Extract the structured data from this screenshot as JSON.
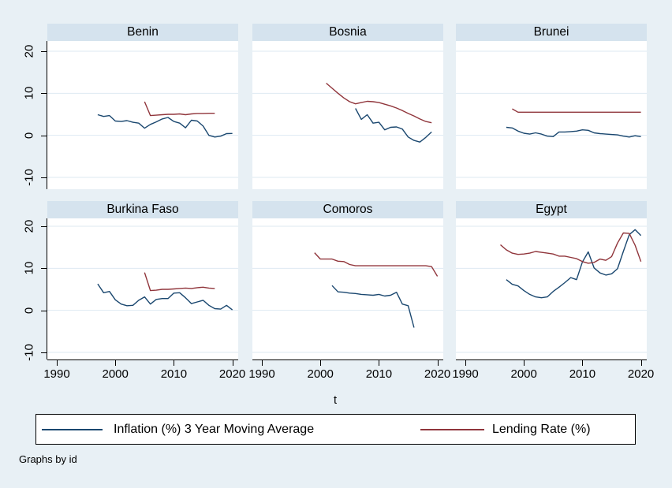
{
  "figure": {
    "background": "#e8f0f5",
    "panel_title_bg": "#d5e3ee",
    "plot_bg": "#ffffff",
    "gridline_color": "#dee9f2",
    "axis_color": "#000000"
  },
  "legend": {
    "items": [
      {
        "label": "Inflation (%) 3 Year Moving Average",
        "color": "#1a476f"
      },
      {
        "label": "Lending Rate (%)",
        "color": "#90353b"
      }
    ]
  },
  "axis": {
    "xlabel": "t",
    "x_ticks": [
      1990,
      2000,
      2010,
      2020
    ],
    "y_ticks": [
      20,
      10,
      0,
      -10
    ]
  },
  "footer": {
    "note": "Graphs by id"
  },
  "chart_data": {
    "type": "line",
    "facet_by": "id",
    "x_range": [
      1988.4,
      2021
    ],
    "y_gridlines": [
      20,
      10,
      0,
      -10
    ],
    "series_names": [
      "Inflation (%) 3 Year Moving Average",
      "Lending Rate (%)"
    ],
    "series_colors": [
      "#1a476f",
      "#90353b"
    ],
    "panels": [
      {
        "title": "Benin",
        "inflation": {
          "start_year": 1997,
          "values": [
            4.9,
            4.5,
            4.7,
            3.4,
            3.3,
            3.5,
            3.1,
            2.9,
            1.7,
            2.6,
            3.2,
            3.9,
            4.25,
            3.3,
            2.9,
            1.8,
            3.6,
            3.4,
            2.2,
            0.0,
            -0.4,
            -0.2,
            0.4,
            0.45
          ]
        },
        "lending": {
          "start_year": 2005,
          "values": [
            8.0,
            4.7,
            4.8,
            4.9,
            5.0,
            5.0,
            5.1,
            4.9,
            5.1,
            5.2,
            5.2,
            5.25,
            5.25
          ]
        }
      },
      {
        "title": "Bosnia",
        "inflation": {
          "start_year": 2006,
          "values": [
            6.4,
            3.8,
            4.9,
            2.9,
            3.1,
            1.3,
            1.9,
            2.0,
            1.5,
            -0.4,
            -1.2,
            -1.6,
            -0.5,
            0.8
          ]
        },
        "lending": {
          "start_year": 2001,
          "values": [
            12.4,
            11.2,
            10.0,
            8.9,
            8.0,
            7.5,
            7.8,
            8.1,
            8.0,
            7.8,
            7.4,
            7.0,
            6.5,
            5.9,
            5.2,
            4.6,
            3.9,
            3.3,
            3.0
          ]
        }
      },
      {
        "title": "Brunei",
        "inflation": {
          "start_year": 1997,
          "values": [
            1.9,
            1.75,
            1.0,
            0.5,
            0.3,
            0.6,
            0.3,
            -0.2,
            -0.3,
            0.8,
            0.8,
            0.9,
            1.0,
            1.3,
            1.2,
            0.6,
            0.4,
            0.3,
            0.2,
            0.1,
            -0.2,
            -0.4,
            -0.1,
            -0.3
          ]
        },
        "lending": {
          "start_year": 1998,
          "values": [
            6.3,
            5.5,
            5.5,
            5.5,
            5.5,
            5.5,
            5.5,
            5.5,
            5.5,
            5.5,
            5.5,
            5.5,
            5.5,
            5.5,
            5.5,
            5.5,
            5.5,
            5.5,
            5.5,
            5.5,
            5.5,
            5.5,
            5.5
          ]
        }
      },
      {
        "title": "Burkina Faso",
        "inflation": {
          "start_year": 1997,
          "values": [
            6.3,
            4.2,
            4.5,
            2.5,
            1.5,
            1.1,
            1.2,
            2.4,
            3.2,
            1.5,
            2.6,
            2.8,
            2.8,
            4.1,
            4.2,
            3.0,
            1.6,
            2.0,
            2.4,
            1.2,
            0.4,
            0.3,
            1.2,
            0.1
          ]
        },
        "lending": {
          "start_year": 2005,
          "values": [
            9.0,
            4.7,
            4.8,
            5.0,
            5.0,
            5.1,
            5.2,
            5.3,
            5.2,
            5.4,
            5.5,
            5.3,
            5.2
          ]
        }
      },
      {
        "title": "Comoros",
        "inflation": {
          "start_year": 2002,
          "values": [
            5.9,
            4.4,
            4.3,
            4.1,
            4.0,
            3.8,
            3.7,
            3.6,
            3.8,
            3.4,
            3.6,
            4.3,
            1.5,
            1.1,
            -4.1
          ]
        },
        "lending": {
          "start_year": 1999,
          "values": [
            13.7,
            12.2,
            12.2,
            12.2,
            11.7,
            11.6,
            10.9,
            10.6,
            10.6,
            10.6,
            10.6,
            10.6,
            10.6,
            10.6,
            10.6,
            10.6,
            10.6,
            10.6,
            10.6,
            10.6,
            10.4,
            8.1
          ]
        }
      },
      {
        "title": "Egypt",
        "inflation": {
          "start_year": 1997,
          "values": [
            7.3,
            6.2,
            5.8,
            4.7,
            3.8,
            3.2,
            3.0,
            3.2,
            4.5,
            5.5,
            6.6,
            7.8,
            7.3,
            11.5,
            13.9,
            10.1,
            8.9,
            8.4,
            8.7,
            9.9,
            14.0,
            18.0,
            19.2,
            17.8
          ]
        },
        "lending": {
          "start_year": 1996,
          "values": [
            15.6,
            14.4,
            13.6,
            13.3,
            13.4,
            13.6,
            14.0,
            13.8,
            13.6,
            13.4,
            12.9,
            12.9,
            12.6,
            12.3,
            11.6,
            11.2,
            11.4,
            12.2,
            11.9,
            12.8,
            16.0,
            18.4,
            18.3,
            15.5,
            11.6
          ]
        }
      }
    ]
  }
}
